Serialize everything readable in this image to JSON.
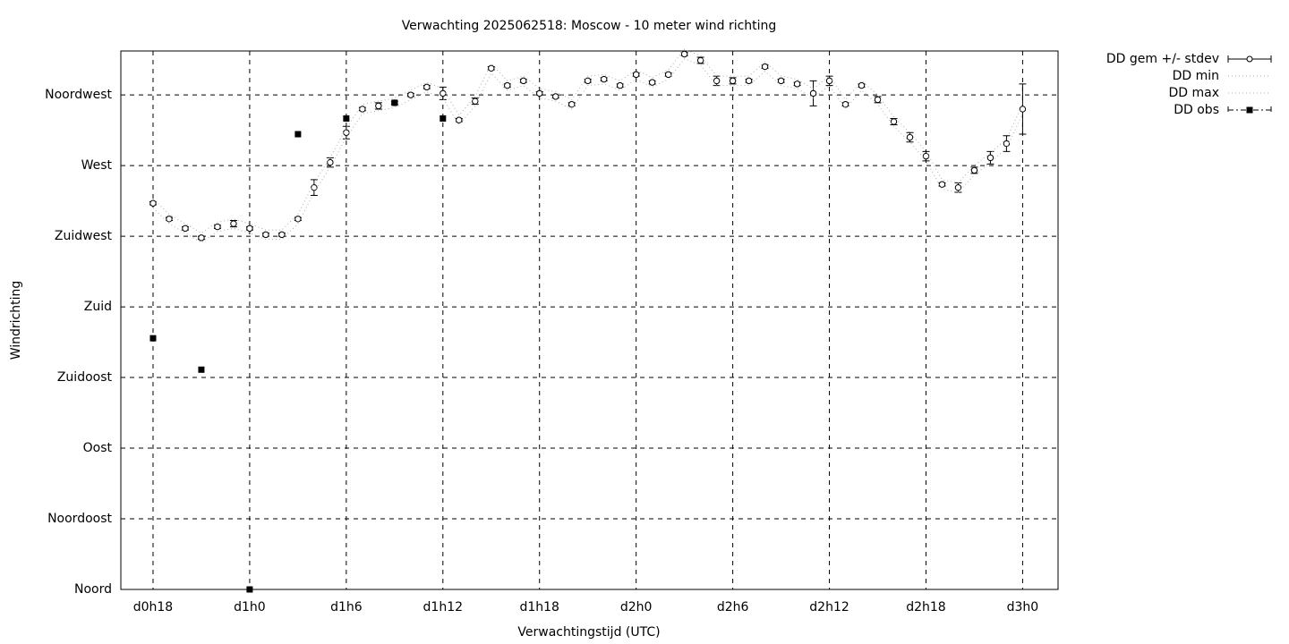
{
  "chart_data": {
    "type": "errorbar",
    "title": "Verwachting 2025062518: Moscow - 10 meter wind richting",
    "x_label": "Verwachtingstijd (UTC)",
    "y_label": "Windrichting",
    "xlim": [
      16,
      74.2
    ],
    "xticks": [
      {
        "value": 18,
        "label": "d0h18"
      },
      {
        "value": 24,
        "label": "d1h0"
      },
      {
        "value": 30,
        "label": "d1h6"
      },
      {
        "value": 36,
        "label": "d1h12"
      },
      {
        "value": 42,
        "label": "d1h18"
      },
      {
        "value": 48,
        "label": "d2h0"
      },
      {
        "value": 54,
        "label": "d2h6"
      },
      {
        "value": 60,
        "label": "d2h12"
      },
      {
        "value": 66,
        "label": "d2h18"
      },
      {
        "value": 72,
        "label": "d3h0"
      }
    ],
    "ylim": [
      0,
      343
    ],
    "yticks": [
      {
        "value": 0,
        "label": "Noord"
      },
      {
        "value": 45,
        "label": "Noordoost"
      },
      {
        "value": 90,
        "label": "Oost"
      },
      {
        "value": 135,
        "label": "Zuidoost"
      },
      {
        "value": 180,
        "label": "Zuid"
      },
      {
        "value": 225,
        "label": "Zuidwest"
      },
      {
        "value": 270,
        "label": "West"
      },
      {
        "value": 315,
        "label": "Noordwest"
      }
    ],
    "grid": true,
    "legend": "outside-top-right",
    "x": [
      18,
      19,
      20,
      21,
      22,
      23,
      24,
      25,
      26,
      27,
      28,
      29,
      30,
      31,
      32,
      33,
      34,
      35,
      36,
      37,
      38,
      39,
      40,
      41,
      42,
      43,
      44,
      45,
      46,
      47,
      48,
      49,
      50,
      51,
      52,
      53,
      54,
      55,
      56,
      57,
      58,
      59,
      60,
      61,
      62,
      63,
      64,
      65,
      66,
      67,
      68,
      69,
      70,
      71,
      72
    ],
    "series": [
      {
        "name": "DD gem +/- stdev",
        "style": "errorbars",
        "color": "#000000",
        "values": [
          246,
          236,
          230,
          224,
          231,
          233,
          230,
          226,
          226,
          236,
          256,
          272,
          291,
          306,
          308,
          310,
          315,
          320,
          316,
          299,
          311,
          332,
          321,
          324,
          316,
          314,
          309,
          324,
          325,
          321,
          328,
          323,
          328,
          341,
          337,
          324,
          324,
          324,
          333,
          324,
          322,
          316,
          324,
          309,
          321,
          312,
          298,
          288,
          276,
          258,
          256,
          267,
          275,
          284,
          306
        ],
        "error": [
          1,
          1,
          1,
          1,
          1,
          2,
          1,
          1,
          1,
          1,
          5,
          3,
          4,
          1,
          2,
          1,
          1,
          1,
          4,
          1,
          2,
          1,
          1,
          1,
          1,
          1,
          1,
          1,
          1,
          1,
          1,
          1,
          1,
          1,
          2,
          3,
          2,
          1,
          1,
          1,
          1,
          8,
          3,
          1,
          1,
          2,
          2,
          3,
          3,
          1,
          3,
          2,
          4,
          5,
          16
        ]
      },
      {
        "name": "DD min",
        "style": "dotted",
        "color": "#aaaaaa",
        "values": [
          243,
          233,
          227,
          221,
          228,
          230,
          227,
          223,
          223,
          233,
          253,
          269,
          288,
          303,
          305,
          307,
          312,
          317,
          313,
          296,
          308,
          329,
          318,
          321,
          313,
          311,
          306,
          321,
          322,
          318,
          325,
          320,
          325,
          338,
          334,
          321,
          321,
          321,
          330,
          321,
          319,
          313,
          321,
          306,
          318,
          309,
          295,
          285,
          273,
          255,
          253,
          264,
          272,
          281,
          303
        ]
      },
      {
        "name": "DD max",
        "style": "dotted",
        "color": "#aaaaaa",
        "values": [
          249,
          239,
          233,
          227,
          234,
          236,
          233,
          229,
          229,
          239,
          259,
          275,
          294,
          309,
          311,
          313,
          318,
          323,
          319,
          302,
          314,
          335,
          324,
          327,
          319,
          317,
          312,
          327,
          328,
          324,
          331,
          326,
          331,
          344,
          340,
          327,
          327,
          327,
          336,
          327,
          325,
          319,
          327,
          312,
          324,
          315,
          301,
          291,
          279,
          261,
          259,
          270,
          278,
          287,
          309
        ]
      },
      {
        "name": "DD obs",
        "style": "points",
        "color": "#000000",
        "x": [
          18,
          21,
          24,
          27,
          30,
          33,
          36
        ],
        "values": [
          160,
          140,
          0,
          290,
          300,
          310,
          300
        ]
      }
    ]
  }
}
